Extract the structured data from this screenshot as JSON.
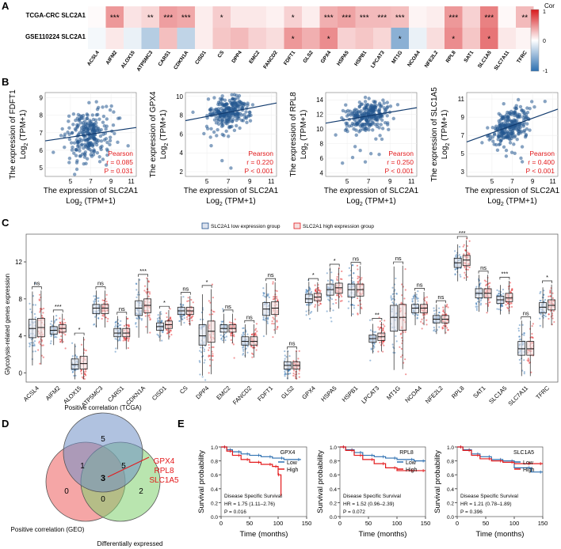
{
  "panels": {
    "A": "A",
    "B": "B",
    "C": "C",
    "D": "D",
    "E": "E"
  },
  "colors": {
    "positive": "#d7191c",
    "negative": "#2c6fb0",
    "low_group": "#1f4e8c",
    "high_group": "#e31a1c",
    "venn_tcga": "#6f8fc6",
    "venn_geo": "#ee6a6a",
    "venn_de": "#7fcf6e"
  },
  "chart_data": [
    {
      "panel": "A",
      "type": "heatmap",
      "rows": [
        "TCGA-CRC SLC2A1",
        "GSE110224 SLC2A1"
      ],
      "columns": [
        "ACSL4",
        "AIFM2",
        "ALOX15",
        "ATP5MC3",
        "CARS1",
        "CDKN1A",
        "CISD1",
        "CS",
        "DPP4",
        "EMC2",
        "FANCD2",
        "FDFT1",
        "GLS2",
        "GPX4",
        "HSPA5",
        "HSPB1",
        "LPCAT3",
        "MT1G",
        "NCOA4",
        "NFE2L2",
        "RPL8",
        "SAT1",
        "SLC1A5",
        "SLC7A11",
        "TFRC"
      ],
      "values": [
        [
          0.02,
          0.45,
          0.12,
          0.18,
          0.42,
          0.38,
          0.08,
          0.22,
          0.1,
          0.1,
          0.06,
          0.2,
          0.08,
          0.35,
          0.4,
          0.3,
          0.3,
          0.28,
          0.05,
          0.08,
          0.45,
          0.2,
          0.55,
          0.03,
          0.3
        ],
        [
          -0.05,
          0.1,
          -0.1,
          -0.35,
          0.28,
          -0.3,
          0.08,
          0.25,
          0.3,
          0.2,
          0.15,
          0.45,
          0.35,
          0.5,
          0.2,
          0.25,
          0.18,
          -0.55,
          -0.1,
          0.15,
          0.5,
          0.25,
          0.6,
          0.1,
          0.05
        ]
      ],
      "significance": [
        [
          "",
          "***",
          "",
          "**",
          "***",
          "***",
          "",
          "*",
          "",
          "",
          "",
          "*",
          "",
          "***",
          "***",
          "***",
          "***",
          "***",
          "",
          "",
          "***",
          "",
          "***",
          "",
          "**"
        ],
        [
          "",
          "",
          "",
          "",
          "",
          "",
          "",
          "",
          "",
          "",
          "",
          "*",
          "",
          "*",
          "",
          "",
          "",
          "*",
          "",
          "",
          "*",
          "",
          "*",
          "",
          ""
        ]
      ],
      "legend_title": "Cor",
      "legend_ticks": [
        "1",
        "0",
        "-1"
      ],
      "legend_range": [
        -1,
        1
      ]
    },
    {
      "panel": "B",
      "type": "scatter",
      "plots": [
        {
          "gene": "FDFT1",
          "ylabel": "The expression of FDFT1",
          "xlabel": "The expression of SLC2A1",
          "unit": "(TPM+1)",
          "r": "r = 0.085",
          "p": "P = 0.031",
          "method": "Pearson",
          "xlim": [
            2.5,
            11.5
          ],
          "ylim": [
            4.5,
            9.3
          ],
          "xticks": [
            "5",
            "7",
            "9",
            "11"
          ],
          "yticks": [
            "5",
            "6",
            "7",
            "8",
            "9"
          ],
          "center": [
            6.8,
            6.9
          ],
          "spread": [
            1.0,
            0.8
          ],
          "slope": 0.085
        },
        {
          "gene": "GPX4",
          "ylabel": "The expression of GPX4",
          "xlabel": "The expression of SLC2A1",
          "unit": "(TPM+1)",
          "r": "r = 0.220",
          "p": "P < 0.001",
          "method": "Pearson",
          "xlim": [
            3,
            11.5
          ],
          "ylim": [
            1.5,
            10.4
          ],
          "xticks": [
            "5",
            "7",
            "9",
            "11"
          ],
          "yticks": [
            "2",
            "4",
            "6",
            "8",
            "10"
          ],
          "center": [
            7.0,
            8.3
          ],
          "spread": [
            1.0,
            0.8
          ],
          "slope": 0.22
        },
        {
          "gene": "RPL8",
          "ylabel": "The expression of RPL8",
          "xlabel": "The expression of SLC2A1",
          "unit": "(TPM+1)",
          "r": "r = 0.250",
          "p": "P < 0.001",
          "method": "Pearson",
          "xlim": [
            3,
            11.5
          ],
          "ylim": [
            3.5,
            15
          ],
          "xticks": [
            "5",
            "7",
            "9",
            "11"
          ],
          "yticks": [
            "4",
            "6",
            "8",
            "10",
            "12",
            "14"
          ],
          "center": [
            7.0,
            11.8
          ],
          "spread": [
            1.0,
            0.9
          ],
          "slope": 0.25
        },
        {
          "gene": "SLC1A5",
          "ylabel": "The expression of SLC1A5",
          "xlabel": "The expression of SLC2A1",
          "unit": "(TPM+1)",
          "r": "r = 0.400",
          "p": "P < 0.001",
          "method": "Pearson",
          "xlim": [
            2.5,
            11.5
          ],
          "ylim": [
            2.5,
            11.7
          ],
          "xticks": [
            "5",
            "7",
            "9",
            "11"
          ],
          "yticks": [
            "3",
            "5",
            "7",
            "9",
            "11"
          ],
          "center": [
            6.8,
            8.0
          ],
          "spread": [
            1.0,
            0.9
          ],
          "slope": 0.4
        }
      ]
    },
    {
      "panel": "C",
      "type": "box",
      "ylabel": "Glycolysis-related genes expression",
      "ylim": [
        -1,
        15
      ],
      "yticks": [
        "0",
        "4",
        "8",
        "12"
      ],
      "legend": [
        "SLC2A1 low expression group",
        "SLC2A1 high expression group"
      ],
      "genes": [
        "ACSL4",
        "AIFM2",
        "ALOX15",
        "ATP5MC3",
        "CARS1",
        "CDKN1A",
        "CISD1",
        "CS",
        "DPP4",
        "EMC2",
        "FANCD2",
        "FDFT1",
        "GLS2",
        "GPX4",
        "HSPA5",
        "HSPB1",
        "LPCAT3",
        "MT1G",
        "NCOA4",
        "NFE2L2",
        "RPL8",
        "SAT1",
        "SLC1A5",
        "SLC7A11",
        "TFRC"
      ],
      "significance": [
        "ns",
        "***",
        "*",
        "ns",
        "ns",
        "***",
        "*",
        "ns",
        "*",
        "ns",
        "ns",
        "ns",
        "ns",
        "*",
        "*",
        "ns",
        "**",
        "ns",
        "ns",
        "ns",
        "***",
        "ns",
        "***",
        "ns",
        "*"
      ],
      "low": [
        [
          3.8,
          4.8,
          5.8
        ],
        [
          4.2,
          4.6,
          5.0
        ],
        [
          0.4,
          0.9,
          1.5
        ],
        [
          6.4,
          7.0,
          7.4
        ],
        [
          3.9,
          4.3,
          4.8
        ],
        [
          6.2,
          7.0,
          7.8
        ],
        [
          4.6,
          5.0,
          5.4
        ],
        [
          6.3,
          6.7,
          7.1
        ],
        [
          3.0,
          4.0,
          5.2
        ],
        [
          4.4,
          4.8,
          5.2
        ],
        [
          3.0,
          3.4,
          3.9
        ],
        [
          6.2,
          6.9,
          7.6
        ],
        [
          0.4,
          0.8,
          1.2
        ],
        [
          7.6,
          8.0,
          8.5
        ],
        [
          8.4,
          9.0,
          9.6
        ],
        [
          8.2,
          9.0,
          9.6
        ],
        [
          3.3,
          3.7,
          4.1
        ],
        [
          4.5,
          6.0,
          7.3
        ],
        [
          6.5,
          7.0,
          7.4
        ],
        [
          5.4,
          5.8,
          6.2
        ],
        [
          11.4,
          11.9,
          12.4
        ],
        [
          8.1,
          8.6,
          9.1
        ],
        [
          7.5,
          7.9,
          8.3
        ],
        [
          1.9,
          2.6,
          3.4
        ],
        [
          6.5,
          7.1,
          7.6
        ]
      ],
      "high": [
        [
          3.9,
          4.9,
          5.9
        ],
        [
          4.4,
          4.8,
          5.2
        ],
        [
          0.4,
          1.0,
          1.8
        ],
        [
          6.4,
          7.0,
          7.4
        ],
        [
          3.9,
          4.3,
          4.8
        ],
        [
          6.5,
          7.3,
          8.0
        ],
        [
          4.8,
          5.2,
          5.6
        ],
        [
          6.3,
          6.7,
          7.1
        ],
        [
          3.3,
          4.5,
          5.6
        ],
        [
          4.4,
          4.8,
          5.2
        ],
        [
          3.0,
          3.4,
          3.9
        ],
        [
          6.3,
          7.0,
          7.7
        ],
        [
          0.4,
          0.8,
          1.2
        ],
        [
          7.8,
          8.2,
          8.6
        ],
        [
          8.6,
          9.2,
          9.7
        ],
        [
          8.3,
          9.0,
          9.6
        ],
        [
          3.5,
          3.9,
          4.3
        ],
        [
          4.6,
          6.0,
          7.4
        ],
        [
          6.5,
          7.0,
          7.4
        ],
        [
          5.4,
          5.8,
          6.2
        ],
        [
          11.6,
          12.2,
          12.7
        ],
        [
          8.1,
          8.6,
          9.1
        ],
        [
          7.7,
          8.1,
          8.6
        ],
        [
          1.9,
          2.6,
          3.4
        ],
        [
          6.8,
          7.3,
          7.9
        ]
      ]
    },
    {
      "panel": "D",
      "type": "venn",
      "sets": [
        "Positive correlation (TCGA)",
        "Positive correlation (GEO)",
        "Differentially expressed"
      ],
      "counts": {
        "tcga_only": "5",
        "geo_only": "0",
        "de_only": "2",
        "tcga_geo": "1",
        "tcga_de": "5",
        "geo_de": "0",
        "all": "3"
      },
      "callout": [
        "GPX4",
        "RPL8",
        "SLC1A5"
      ]
    },
    {
      "panel": "E",
      "type": "line",
      "xlabel": "Time (months)",
      "ylabel": "Survival probability",
      "xticks": [
        "0",
        "50",
        "100",
        "150"
      ],
      "yticks": [
        "0.0",
        "0.2",
        "0.4",
        "0.6",
        "0.8",
        "1.0"
      ],
      "xlim": [
        0,
        150
      ],
      "ylim": [
        0,
        1
      ],
      "plots": [
        {
          "gene": "GPX4",
          "legend": [
            "Low",
            "High"
          ],
          "endpoint": "Disease Specific Survival",
          "hr": "HR = 1.75 (1.11–2.76)",
          "p": "P = 0.016",
          "low": [
            [
              0,
              1.0
            ],
            [
              10,
              0.96
            ],
            [
              20,
              0.93
            ],
            [
              35,
              0.9
            ],
            [
              50,
              0.88
            ],
            [
              70,
              0.86
            ],
            [
              90,
              0.84
            ],
            [
              110,
              0.82
            ],
            [
              140,
              0.82
            ]
          ],
          "high": [
            [
              0,
              1.0
            ],
            [
              10,
              0.94
            ],
            [
              20,
              0.88
            ],
            [
              35,
              0.82
            ],
            [
              50,
              0.78
            ],
            [
              70,
              0.75
            ],
            [
              90,
              0.72
            ],
            [
              100,
              0.6
            ],
            [
              105,
              0.3
            ]
          ]
        },
        {
          "gene": "RPL8",
          "legend": [
            "Low",
            "High"
          ],
          "endpoint": "Disease Specific Survival",
          "hr": "HR = 1.52 (0.96–2.39)",
          "p": "P = 0.072",
          "low": [
            [
              0,
              1.0
            ],
            [
              10,
              0.96
            ],
            [
              25,
              0.92
            ],
            [
              40,
              0.88
            ],
            [
              60,
              0.86
            ],
            [
              80,
              0.84
            ],
            [
              100,
              0.82
            ],
            [
              130,
              0.8
            ],
            [
              150,
              0.8
            ]
          ],
          "high": [
            [
              0,
              1.0
            ],
            [
              10,
              0.95
            ],
            [
              25,
              0.88
            ],
            [
              40,
              0.82
            ],
            [
              60,
              0.76
            ],
            [
              80,
              0.7
            ],
            [
              100,
              0.66
            ],
            [
              130,
              0.66
            ],
            [
              150,
              0.66
            ]
          ]
        },
        {
          "gene": "SLC1A5",
          "legend": [
            "Low",
            "High"
          ],
          "endpoint": "Disease Specific Survival",
          "hr": "HR = 1.21 (0.78–1.89)",
          "p": "P = 0.396",
          "low": [
            [
              0,
              1.0
            ],
            [
              10,
              0.96
            ],
            [
              25,
              0.9
            ],
            [
              40,
              0.86
            ],
            [
              60,
              0.82
            ],
            [
              80,
              0.8
            ],
            [
              100,
              0.7
            ],
            [
              130,
              0.64
            ],
            [
              150,
              0.64
            ]
          ],
          "high": [
            [
              0,
              1.0
            ],
            [
              10,
              0.95
            ],
            [
              25,
              0.88
            ],
            [
              40,
              0.83
            ],
            [
              60,
              0.8
            ],
            [
              80,
              0.78
            ],
            [
              100,
              0.76
            ],
            [
              130,
              0.76
            ],
            [
              150,
              0.76
            ]
          ]
        }
      ]
    }
  ]
}
